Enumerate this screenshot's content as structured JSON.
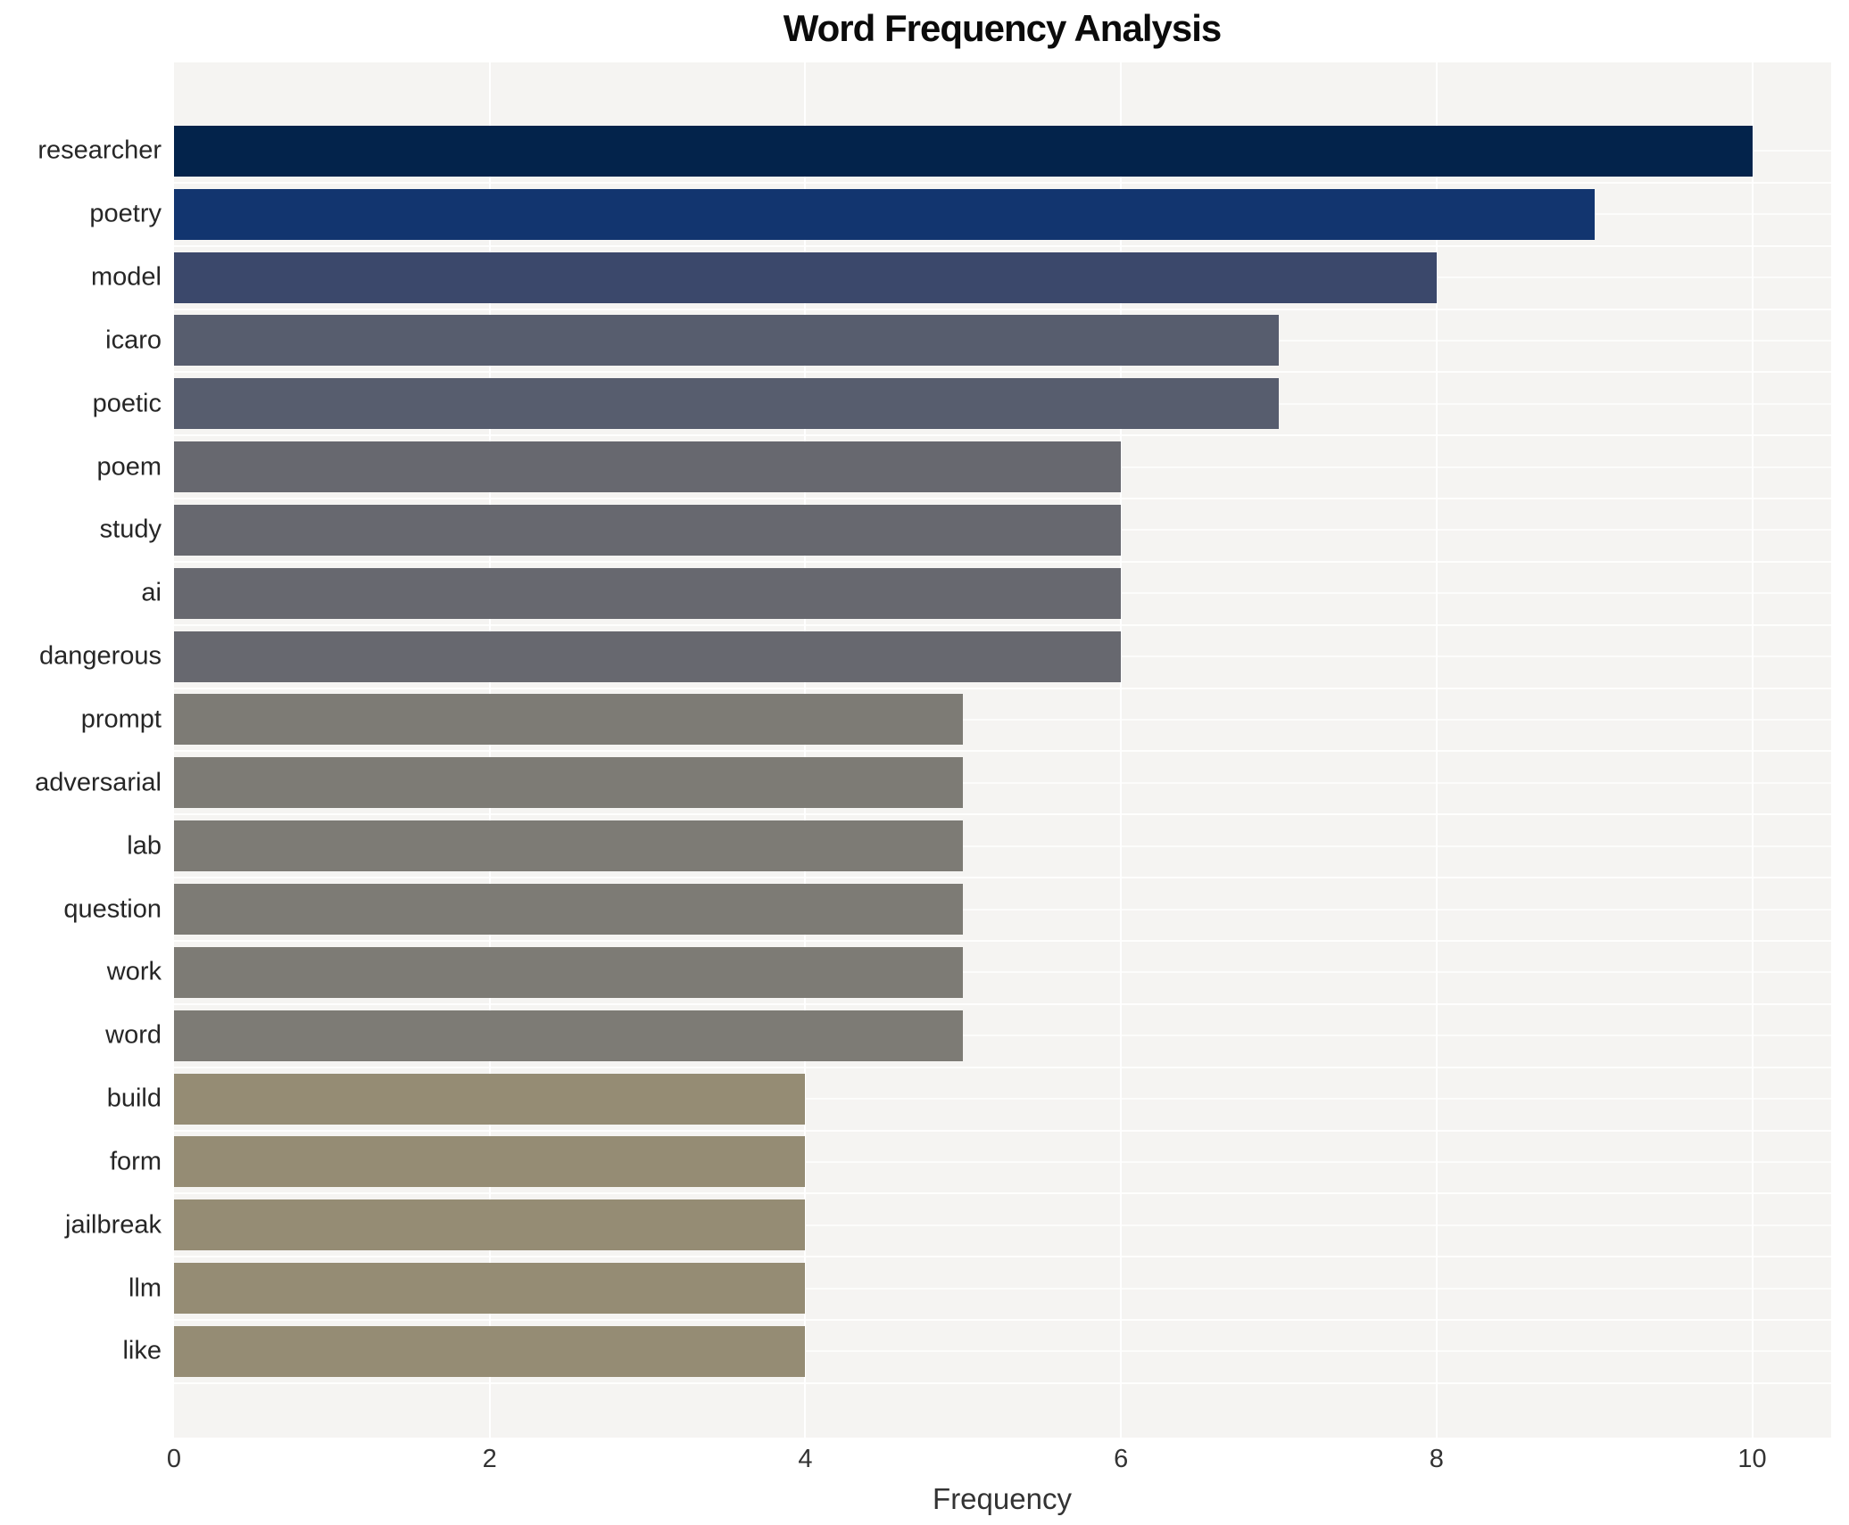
{
  "chart_data": {
    "type": "bar",
    "orientation": "horizontal",
    "title": "Word Frequency Analysis",
    "xlabel": "Frequency",
    "ylabel": "",
    "categories": [
      "researcher",
      "poetry",
      "model",
      "icaro",
      "poetic",
      "poem",
      "study",
      "ai",
      "dangerous",
      "prompt",
      "adversarial",
      "lab",
      "question",
      "work",
      "word",
      "build",
      "form",
      "jailbreak",
      "llm",
      "like"
    ],
    "values": [
      10,
      9,
      8,
      7,
      7,
      6,
      6,
      6,
      6,
      5,
      5,
      5,
      5,
      5,
      5,
      4,
      4,
      4,
      4,
      4
    ],
    "bar_colors": [
      "#03234b",
      "#12356f",
      "#3b486b",
      "#575d6e",
      "#575d6e",
      "#67686f",
      "#67686f",
      "#67686f",
      "#67686f",
      "#7d7b75",
      "#7d7b75",
      "#7d7b75",
      "#7d7b75",
      "#7d7b75",
      "#7d7b75",
      "#958c74",
      "#958c74",
      "#958c74",
      "#958c74",
      "#958c74"
    ],
    "xlim": [
      0,
      10.5
    ],
    "xticks": [
      0,
      2,
      4,
      6,
      8,
      10
    ],
    "grid": "on",
    "legend": "none",
    "plot_background": "#f5f4f2",
    "grid_color": "#ffffff",
    "title_color": "#0b0b0b",
    "label_color": "#262626",
    "tick_color": "#333333"
  }
}
